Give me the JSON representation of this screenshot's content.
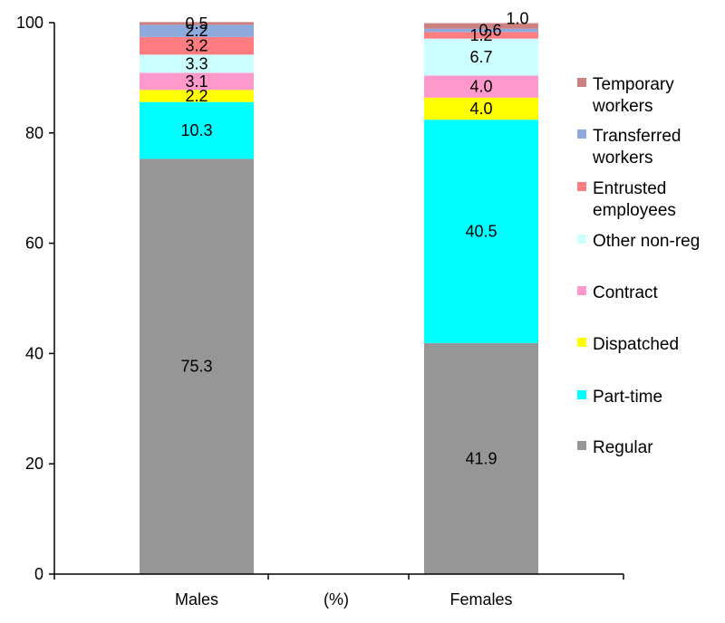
{
  "chart_data": {
    "type": "bar",
    "stacked": true,
    "categories": [
      "Males",
      "(%)",
      "Females"
    ],
    "ylim": [
      0,
      100
    ],
    "yticks": [
      0,
      20,
      40,
      60,
      80,
      100
    ],
    "grid": false,
    "legend_position": "right",
    "series": [
      {
        "name": "Regular",
        "color": "#969696",
        "values": [
          75.3,
          null,
          41.9
        ],
        "labels": [
          "75.3",
          "",
          "41.9"
        ]
      },
      {
        "name": "Part-time",
        "color": "#00ffff",
        "values": [
          10.3,
          null,
          40.5
        ],
        "labels": [
          "10.3",
          "",
          "40.5"
        ]
      },
      {
        "name": "Dispatched",
        "color": "#ffff00",
        "values": [
          2.2,
          null,
          4.0
        ],
        "labels": [
          "2.2",
          "",
          "4.0"
        ]
      },
      {
        "name": "Contract",
        "color": "#ff99cc",
        "values": [
          3.1,
          null,
          4.0
        ],
        "labels": [
          "3.1",
          "",
          "4.0"
        ]
      },
      {
        "name": "Other non-reg",
        "color": "#ccffff",
        "values": [
          3.3,
          null,
          6.7
        ],
        "labels": [
          "3.3",
          "",
          "6.7"
        ]
      },
      {
        "name": "Entrusted employees",
        "color": "#ff7c80",
        "values": [
          3.2,
          null,
          1.2
        ],
        "labels": [
          "3.2",
          "",
          "1.2"
        ]
      },
      {
        "name": "Transferred workers",
        "color": "#8ea9db",
        "values": [
          2.2,
          null,
          0.6
        ],
        "labels": [
          "2.2",
          "",
          "0.6"
        ]
      },
      {
        "name": "Temporary workers",
        "color": "#cc8080",
        "values": [
          0.5,
          null,
          1.0
        ],
        "labels": [
          "0.5",
          "",
          "1.0"
        ]
      }
    ],
    "legend_lines": [
      [
        "Temporary",
        "workers"
      ],
      [
        "Transferred",
        "workers"
      ],
      [
        "Entrusted",
        "employees"
      ],
      [
        "Other non-reg"
      ],
      [
        "Contract"
      ],
      [
        "Dispatched"
      ],
      [
        "Part-time"
      ],
      [
        "Regular"
      ]
    ]
  }
}
